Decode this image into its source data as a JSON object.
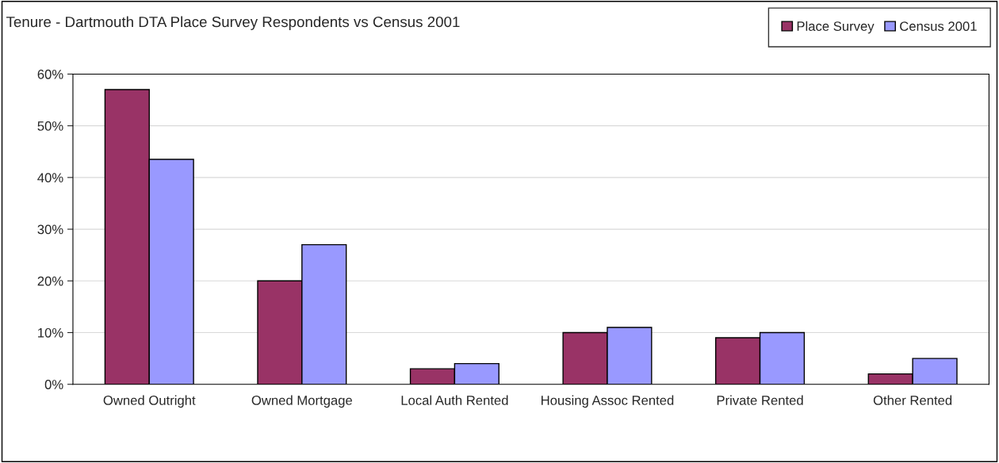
{
  "chart_data": {
    "type": "bar",
    "title": "Tenure - Dartmouth DTA Place Survey Respondents vs Census 2001",
    "categories": [
      "Owned Outright",
      "Owned Mortgage",
      "Local Auth Rented",
      "Housing Assoc Rented",
      "Private Rented",
      "Other Rented"
    ],
    "series": [
      {
        "name": "Place Survey",
        "color": "#993366",
        "values": [
          57,
          20,
          3,
          10,
          9,
          2
        ]
      },
      {
        "name": "Census 2001",
        "color": "#9999ff",
        "values": [
          43.5,
          27,
          4,
          11,
          10,
          5
        ]
      }
    ],
    "ylim": [
      0,
      60
    ],
    "yticks": [
      {
        "value": 0,
        "label": "0%"
      },
      {
        "value": 10,
        "label": "10%"
      },
      {
        "value": 20,
        "label": "20%"
      },
      {
        "value": 30,
        "label": "30%"
      },
      {
        "value": 40,
        "label": "40%"
      },
      {
        "value": 50,
        "label": "50%"
      },
      {
        "value": 60,
        "label": "60%"
      }
    ],
    "grid": "y",
    "legend": "top right"
  }
}
